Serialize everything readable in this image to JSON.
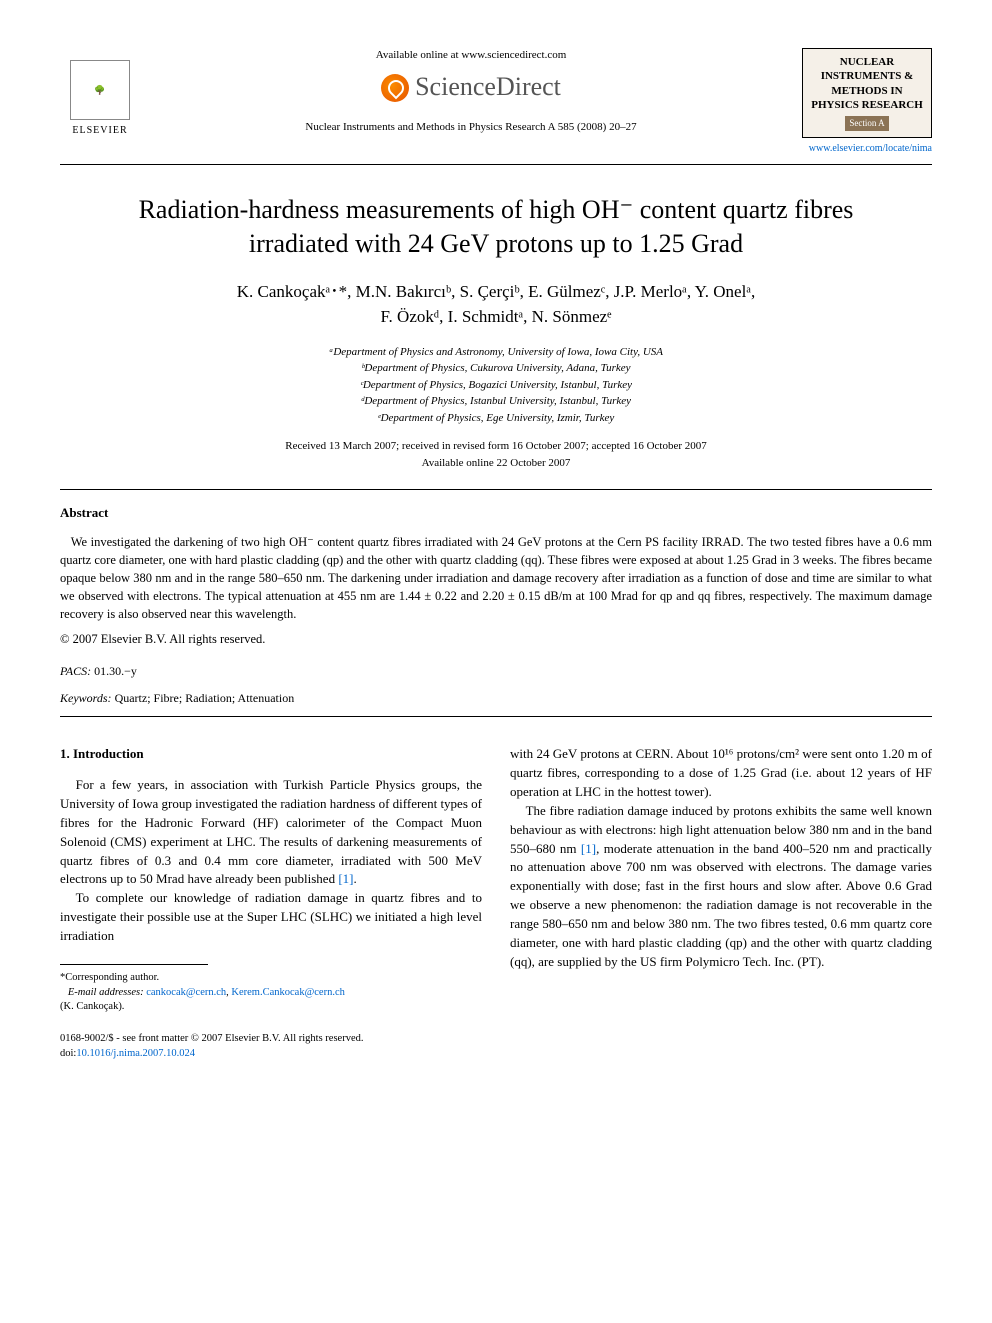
{
  "header": {
    "elsevier_label": "ELSEVIER",
    "available_online": "Available online at www.sciencedirect.com",
    "sciencedirect": "ScienceDirect",
    "journal_ref": "Nuclear Instruments and Methods in Physics Research A 585 (2008) 20–27",
    "journal_box_title": "NUCLEAR INSTRUMENTS & METHODS IN PHYSICS RESEARCH",
    "journal_box_section": "Section A",
    "journal_link": "www.elsevier.com/locate/nima"
  },
  "title_line1": "Radiation-hardness measurements of high OH⁻ content quartz fibres",
  "title_line2": "irradiated with 24 GeV protons up to 1.25 Grad",
  "authors_line1": "K. Cankoçakᵃ･*, M.N. Bakırcıᵇ, S. Çerçiᵇ, E. Gülmezᶜ, J.P. Merloᵃ, Y. Onelᵃ,",
  "authors_line2": "F. Özokᵈ, I. Schmidtᵃ, N. Sönmezᵉ",
  "affiliations": {
    "a": "ᵃDepartment of Physics and Astronomy, University of Iowa, Iowa City, USA",
    "b": "ᵇDepartment of Physics, Cukurova University, Adana, Turkey",
    "c": "ᶜDepartment of Physics, Bogazici University, Istanbul, Turkey",
    "d": "ᵈDepartment of Physics, Istanbul University, Istanbul, Turkey",
    "e": "ᵉDepartment of Physics, Ege University, Izmir, Turkey"
  },
  "dates_line1": "Received 13 March 2007; received in revised form 16 October 2007; accepted 16 October 2007",
  "dates_line2": "Available online 22 October 2007",
  "abstract_heading": "Abstract",
  "abstract_body": "We investigated the darkening of two high OH⁻ content quartz fibres irradiated with 24 GeV protons at the Cern PS facility IRRAD. The two tested fibres have a 0.6 mm quartz core diameter, one with hard plastic cladding (qp) and the other with quartz cladding (qq). These fibres were exposed at about 1.25 Grad in 3 weeks. The fibres became opaque below 380 nm and in the range 580–650 nm. The darkening under irradiation and damage recovery after irradiation as a function of dose and time are similar to what we observed with electrons. The typical attenuation at 455 nm are 1.44 ± 0.22 and 2.20 ± 0.15 dB/m at 100 Mrad for qp and qq fibres, respectively. The maximum damage recovery is also observed near this wavelength.",
  "copyright": "© 2007 Elsevier B.V. All rights reserved.",
  "pacs_label": "PACS:",
  "pacs_value": "01.30.−y",
  "keywords_label": "Keywords:",
  "keywords_value": "Quartz; Fibre; Radiation; Attenuation",
  "section1_heading": "1. Introduction",
  "col1_para1": "For a few years, in association with Turkish Particle Physics groups, the University of Iowa group investigated the radiation hardness of different types of fibres for the Hadronic Forward (HF) calorimeter of the Compact Muon Solenoid (CMS) experiment at LHC. The results of darkening measurements of quartz fibres of 0.3 and 0.4 mm core diameter, irradiated with 500 MeV electrons up to 50 Mrad have already been published ",
  "col1_para1_ref": "[1]",
  "col1_para1_end": ".",
  "col1_para2": "To complete our knowledge of radiation damage in quartz fibres and to investigate their possible use at the Super LHC (SLHC) we initiated a high level irradiation",
  "col2_para1": "with 24 GeV protons at CERN. About 10¹⁶ protons/cm² were sent onto 1.20 m of quartz fibres, corresponding to a dose of 1.25 Grad (i.e. about 12 years of HF operation at LHC in the hottest tower).",
  "col2_para2a": "The fibre radiation damage induced by protons exhibits the same well known behaviour as with electrons: high light attenuation below 380 nm and in the band 550–680 nm ",
  "col2_para2_ref": "[1]",
  "col2_para2b": ", moderate attenuation in the band 400–520 nm and practically no attenuation above 700 nm was observed with electrons. The damage varies exponentially with dose; fast in the first hours and slow after. Above 0.6 Grad we observe a new phenomenon: the radiation damage is not recoverable in the range 580–650 nm and below 380 nm. The two fibres tested, 0.6 mm quartz core diameter, one with hard plastic cladding (qp) and the other with quartz cladding (qq), are supplied by the US firm Polymicro Tech. Inc. (PT).",
  "footnote_corresponding": "*Corresponding author.",
  "footnote_email_label": "E-mail addresses:",
  "footnote_email1": "cankocak@cern.ch",
  "footnote_email2": "Kerem.Cankocak@cern.ch",
  "footnote_name": "(K. Cankoçak).",
  "footer_left_line1": "0168-9002/$ - see front matter © 2007 Elsevier B.V. All rights reserved.",
  "footer_left_line2_label": "doi:",
  "footer_left_line2_link": "10.1016/j.nima.2007.10.024"
}
